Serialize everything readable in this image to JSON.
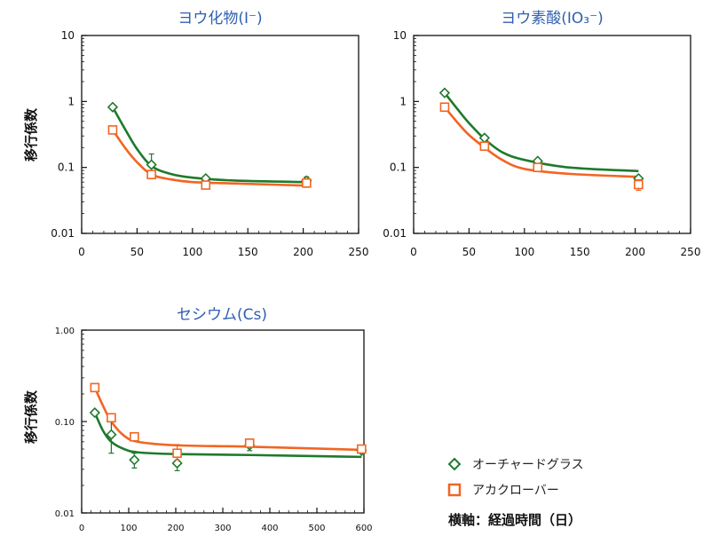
{
  "colors": {
    "green": "#1e7a2c",
    "orange": "#f26522",
    "title": "#2e5fb0"
  },
  "legend": {
    "items": [
      {
        "label": "オーチャードグラス",
        "marker": "diamond",
        "color": "#1e7a2c"
      },
      {
        "label": "アカクローバー",
        "marker": "square",
        "color": "#f26522"
      }
    ],
    "note": "横軸：経過時間（日）"
  },
  "chart_data": [
    {
      "type": "line",
      "title": "ヨウ化物(I⁻)",
      "ylabel": "移行係数",
      "xlabel": "",
      "yscale": "log",
      "xlim": [
        0,
        250
      ],
      "ylim": [
        0.01,
        10
      ],
      "xticks": [
        0,
        50,
        100,
        150,
        200,
        250
      ],
      "yticks": [
        0.01,
        0.1,
        1,
        10
      ],
      "ytick_labels": [
        "0.01",
        "0.1",
        "1",
        "10"
      ],
      "series": [
        {
          "name": "オーチャードグラス",
          "marker": "diamond",
          "points": [
            {
              "x": 28,
              "y": 0.82
            },
            {
              "x": 63,
              "y": 0.11,
              "err": [
                0.07,
                0.16
              ]
            },
            {
              "x": 112,
              "y": 0.068
            },
            {
              "x": 203,
              "y": 0.063,
              "err": [
                0.055,
                0.072
              ]
            }
          ],
          "curve": [
            [
              28,
              0.82
            ],
            [
              40,
              0.36
            ],
            [
              50,
              0.19
            ],
            [
              63,
              0.105
            ],
            [
              80,
              0.08
            ],
            [
              100,
              0.07
            ],
            [
              140,
              0.063
            ],
            [
              203,
              0.06
            ]
          ]
        },
        {
          "name": "アカクローバー",
          "marker": "square",
          "points": [
            {
              "x": 28,
              "y": 0.37
            },
            {
              "x": 63,
              "y": 0.078
            },
            {
              "x": 112,
              "y": 0.054,
              "err": [
                0.05,
                0.058
              ]
            },
            {
              "x": 203,
              "y": 0.058,
              "err": [
                0.05,
                0.066
              ]
            }
          ],
          "curve": [
            [
              28,
              0.37
            ],
            [
              40,
              0.19
            ],
            [
              50,
              0.12
            ],
            [
              63,
              0.078
            ],
            [
              80,
              0.066
            ],
            [
              100,
              0.06
            ],
            [
              140,
              0.057
            ],
            [
              203,
              0.053
            ]
          ]
        }
      ]
    },
    {
      "type": "line",
      "title": "ヨウ素酸(IO₃⁻)",
      "ylabel": "",
      "xlabel": "",
      "yscale": "log",
      "xlim": [
        0,
        250
      ],
      "ylim": [
        0.01,
        10
      ],
      "xticks": [
        0,
        50,
        100,
        150,
        200,
        250
      ],
      "yticks": [
        0.01,
        0.1,
        1,
        10
      ],
      "ytick_labels": [
        "0.01",
        "0.1",
        "1",
        "10"
      ],
      "series": [
        {
          "name": "オーチャードグラス",
          "marker": "diamond",
          "points": [
            {
              "x": 28,
              "y": 1.35
            },
            {
              "x": 64,
              "y": 0.28
            },
            {
              "x": 112,
              "y": 0.125
            },
            {
              "x": 203,
              "y": 0.068
            }
          ],
          "curve": [
            [
              28,
              1.35
            ],
            [
              40,
              0.75
            ],
            [
              50,
              0.47
            ],
            [
              64,
              0.27
            ],
            [
              80,
              0.17
            ],
            [
              100,
              0.13
            ],
            [
              140,
              0.1
            ],
            [
              203,
              0.088
            ]
          ]
        },
        {
          "name": "アカクローバー",
          "marker": "square",
          "points": [
            {
              "x": 28,
              "y": 0.82
            },
            {
              "x": 64,
              "y": 0.21
            },
            {
              "x": 112,
              "y": 0.1
            },
            {
              "x": 203,
              "y": 0.055,
              "err": [
                0.045,
                0.065
              ]
            }
          ],
          "curve": [
            [
              28,
              0.82
            ],
            [
              40,
              0.47
            ],
            [
              50,
              0.31
            ],
            [
              64,
              0.2
            ],
            [
              80,
              0.13
            ],
            [
              100,
              0.095
            ],
            [
              140,
              0.08
            ],
            [
              203,
              0.072
            ]
          ]
        }
      ]
    },
    {
      "type": "line",
      "title": "セシウム(Cs)",
      "ylabel": "移行係数",
      "xlabel": "",
      "yscale": "log",
      "xlim": [
        0,
        600
      ],
      "ylim": [
        0.01,
        1
      ],
      "xticks": [
        0,
        100,
        200,
        300,
        400,
        500,
        600
      ],
      "yticks": [
        0.01,
        0.1,
        1
      ],
      "ytick_labels": [
        "0.01",
        "0.10",
        "1.00"
      ],
      "series": [
        {
          "name": "オーチャードグラス",
          "marker": "diamond",
          "points": [
            {
              "x": 28,
              "y": 0.125
            },
            {
              "x": 63,
              "y": 0.072,
              "err": [
                0.045,
                0.1
              ]
            },
            {
              "x": 112,
              "y": 0.038,
              "err": [
                0.031,
                0.045
              ]
            },
            {
              "x": 203,
              "y": 0.035,
              "err": [
                0.029,
                0.042
              ]
            },
            {
              "x": 357,
              "y": 0.055,
              "err": [
                0.048,
                0.062
              ]
            },
            {
              "x": 595,
              "y": 0.048
            }
          ],
          "curve": [
            [
              28,
              0.125
            ],
            [
              45,
              0.08
            ],
            [
              63,
              0.06
            ],
            [
              90,
              0.05
            ],
            [
              120,
              0.046
            ],
            [
              200,
              0.044
            ],
            [
              360,
              0.043
            ],
            [
              595,
              0.041
            ]
          ]
        },
        {
          "name": "アカクローバー",
          "marker": "square",
          "points": [
            {
              "x": 28,
              "y": 0.235
            },
            {
              "x": 63,
              "y": 0.11
            },
            {
              "x": 112,
              "y": 0.068
            },
            {
              "x": 203,
              "y": 0.045,
              "err": [
                0.038,
                0.056
              ]
            },
            {
              "x": 357,
              "y": 0.058,
              "err": [
                0.052,
                0.064
              ]
            },
            {
              "x": 595,
              "y": 0.05,
              "err": [
                0.046,
                0.054
              ]
            }
          ],
          "curve": [
            [
              28,
              0.235
            ],
            [
              45,
              0.15
            ],
            [
              63,
              0.1
            ],
            [
              90,
              0.07
            ],
            [
              120,
              0.06
            ],
            [
              200,
              0.055
            ],
            [
              360,
              0.053
            ],
            [
              595,
              0.049
            ]
          ]
        }
      ]
    }
  ]
}
